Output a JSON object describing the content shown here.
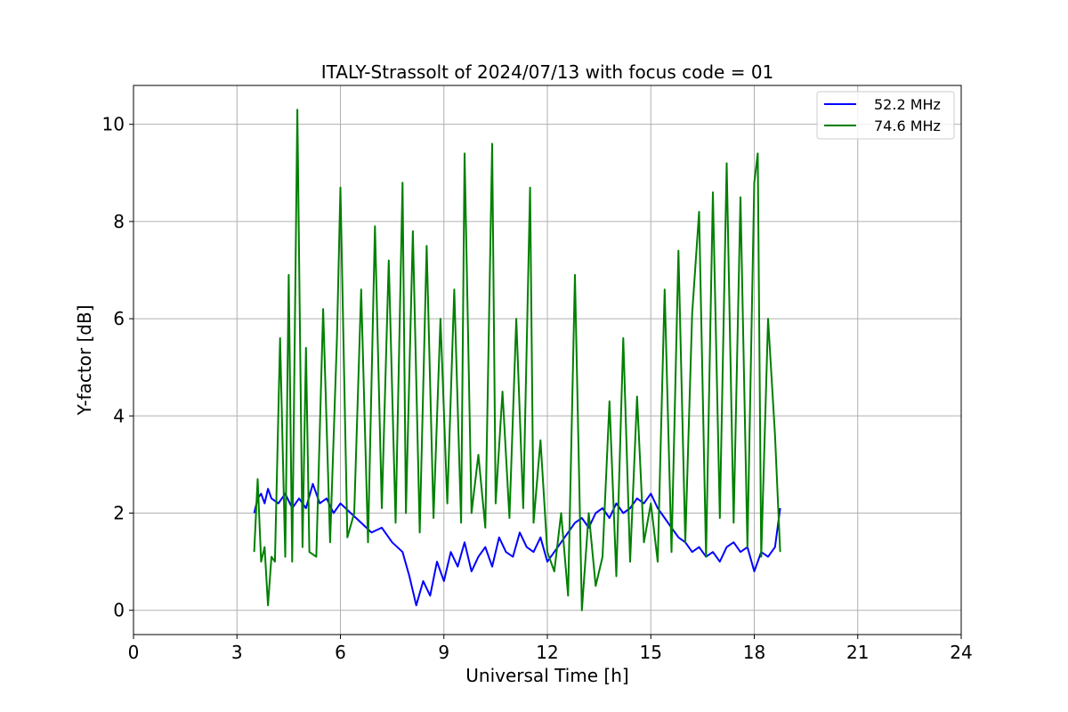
{
  "chart_data": {
    "type": "line",
    "title": "ITALY-Strassolt of 2024/07/13 with focus code = 01",
    "xlabel": "Universal Time [h]",
    "ylabel": "Y-factor [dB]",
    "xlim": [
      0,
      24
    ],
    "ylim": [
      -0.5,
      10.8
    ],
    "xticks": [
      0,
      3,
      6,
      9,
      12,
      15,
      18,
      21,
      24
    ],
    "yticks": [
      0,
      2,
      4,
      6,
      8,
      10
    ],
    "xtick_labels": [
      "0",
      "3",
      "6",
      "9",
      "12",
      "15",
      "18",
      "21",
      "24"
    ],
    "ytick_labels": [
      "0",
      "2",
      "4",
      "6",
      "8",
      "10"
    ],
    "grid": true,
    "legend_position": "top-right",
    "series": [
      {
        "name": "52.2 MHz",
        "color": "#0000ff",
        "x": [
          3.5,
          3.6,
          3.7,
          3.8,
          3.9,
          4.0,
          4.2,
          4.4,
          4.6,
          4.8,
          5.0,
          5.2,
          5.4,
          5.6,
          5.8,
          6.0,
          6.3,
          6.6,
          6.9,
          7.2,
          7.5,
          7.8,
          8.0,
          8.2,
          8.4,
          8.6,
          8.8,
          9.0,
          9.2,
          9.4,
          9.6,
          9.8,
          10.0,
          10.2,
          10.4,
          10.6,
          10.8,
          11.0,
          11.2,
          11.4,
          11.6,
          11.8,
          12.0,
          12.2,
          12.4,
          12.6,
          12.8,
          13.0,
          13.2,
          13.4,
          13.6,
          13.8,
          14.0,
          14.2,
          14.4,
          14.6,
          14.8,
          15.0,
          15.2,
          15.4,
          15.6,
          15.8,
          16.0,
          16.2,
          16.4,
          16.6,
          16.8,
          17.0,
          17.2,
          17.4,
          17.6,
          17.8,
          18.0,
          18.2,
          18.4,
          18.6,
          18.75
        ],
        "y": [
          2.0,
          2.3,
          2.4,
          2.2,
          2.5,
          2.3,
          2.2,
          2.4,
          2.1,
          2.3,
          2.1,
          2.6,
          2.2,
          2.3,
          2.0,
          2.2,
          2.0,
          1.8,
          1.6,
          1.7,
          1.4,
          1.2,
          0.7,
          0.1,
          0.6,
          0.3,
          1.0,
          0.6,
          1.2,
          0.9,
          1.4,
          0.8,
          1.1,
          1.3,
          0.9,
          1.5,
          1.2,
          1.1,
          1.6,
          1.3,
          1.2,
          1.5,
          1.0,
          1.2,
          1.4,
          1.6,
          1.8,
          1.9,
          1.7,
          2.0,
          2.1,
          1.9,
          2.2,
          2.0,
          2.1,
          2.3,
          2.2,
          2.4,
          2.1,
          1.9,
          1.7,
          1.5,
          1.4,
          1.2,
          1.3,
          1.1,
          1.2,
          1.0,
          1.3,
          1.4,
          1.2,
          1.3,
          0.8,
          1.2,
          1.1,
          1.3,
          2.1
        ]
      },
      {
        "name": "74.6 MHz",
        "color": "#008000",
        "x": [
          3.5,
          3.6,
          3.7,
          3.8,
          3.9,
          4.0,
          4.1,
          4.25,
          4.4,
          4.5,
          4.6,
          4.75,
          4.9,
          5.0,
          5.1,
          5.3,
          5.5,
          5.7,
          5.9,
          6.0,
          6.2,
          6.4,
          6.6,
          6.8,
          7.0,
          7.2,
          7.4,
          7.6,
          7.8,
          7.9,
          8.1,
          8.3,
          8.5,
          8.7,
          8.9,
          9.1,
          9.3,
          9.5,
          9.6,
          9.8,
          10.0,
          10.2,
          10.4,
          10.5,
          10.7,
          10.9,
          11.1,
          11.3,
          11.5,
          11.6,
          11.8,
          12.0,
          12.2,
          12.4,
          12.6,
          12.8,
          13.0,
          13.2,
          13.4,
          13.6,
          13.8,
          14.0,
          14.2,
          14.4,
          14.6,
          14.8,
          15.0,
          15.2,
          15.4,
          15.6,
          15.8,
          16.0,
          16.2,
          16.4,
          16.6,
          16.8,
          17.0,
          17.2,
          17.4,
          17.6,
          17.8,
          18.0,
          18.1,
          18.2,
          18.4,
          18.6,
          18.75
        ],
        "y": [
          1.2,
          2.7,
          1.0,
          1.3,
          0.1,
          1.1,
          1.0,
          5.6,
          1.1,
          6.9,
          1.0,
          10.3,
          1.3,
          5.4,
          1.2,
          1.1,
          6.2,
          1.4,
          5.6,
          8.7,
          1.5,
          2.0,
          6.6,
          1.4,
          7.9,
          2.1,
          7.2,
          1.8,
          8.8,
          2.0,
          7.8,
          1.6,
          7.5,
          1.9,
          6.0,
          2.2,
          6.6,
          1.8,
          9.4,
          2.0,
          3.2,
          1.7,
          9.6,
          2.2,
          4.5,
          1.9,
          6.0,
          2.1,
          8.7,
          1.8,
          3.5,
          1.2,
          0.8,
          2.0,
          0.3,
          6.9,
          0.0,
          2.0,
          0.5,
          1.1,
          4.3,
          0.7,
          5.6,
          1.0,
          4.4,
          1.4,
          2.2,
          1.0,
          6.6,
          1.2,
          7.4,
          1.4,
          6.1,
          8.2,
          1.1,
          8.6,
          1.9,
          9.2,
          1.8,
          8.5,
          1.3,
          8.8,
          9.4,
          1.1,
          6.0,
          3.6,
          1.2
        ]
      }
    ]
  }
}
